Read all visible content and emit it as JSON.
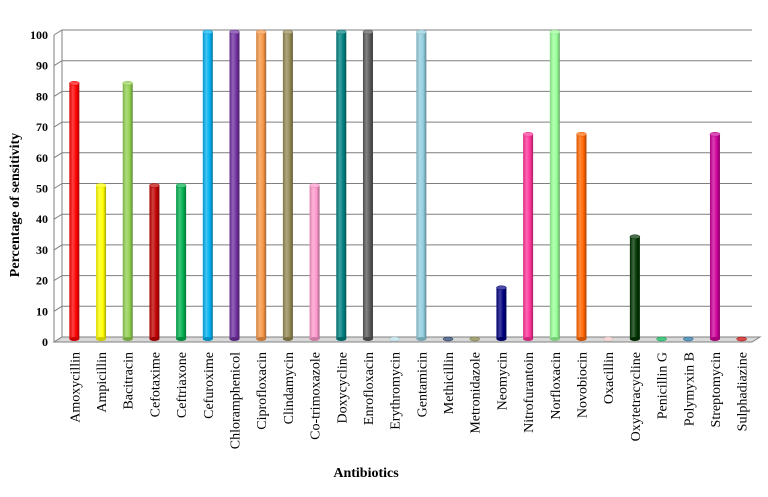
{
  "chart_data": {
    "type": "bar",
    "xlabel": "Antibiotics",
    "ylabel": "Percentage of sensitivity",
    "ylim": [
      0,
      100
    ],
    "yticks": [
      0,
      10,
      20,
      30,
      40,
      50,
      60,
      70,
      80,
      90,
      100
    ],
    "grid": true,
    "legend": "none",
    "categories": [
      "Amoxycillin",
      "Ampicillin",
      "Bacitracin",
      "Cefotaxime",
      "Ceftriaxone",
      "Cefuroxime",
      "Chloramphenicol",
      "Ciprofloxacin",
      "Clindamycin",
      "Co-trimoxazole",
      "Doxycycline",
      "Enrofloxacin",
      "Erythromycin",
      "Gentamicin",
      "Methicillin",
      "Metronidazole",
      "Neomycin",
      "Nitrofurantoin",
      "Norfloxacin",
      "Novobiocin",
      "Oxacillin",
      "Oxytetracycline",
      "Penicillin G",
      "Polymyxin B",
      "Streptomycin",
      "Sulphadiazine"
    ],
    "values": [
      83.3,
      50,
      83.3,
      50,
      50,
      100,
      100,
      100,
      100,
      50,
      100,
      100,
      0,
      100,
      0,
      0,
      16.7,
      66.7,
      100,
      66.7,
      0,
      33.3,
      0,
      0,
      66.7,
      0
    ],
    "colors": [
      "#ff0000",
      "#ffff00",
      "#92d050",
      "#c00000",
      "#00b050",
      "#00b0f0",
      "#7030a0",
      "#f79646",
      "#948a54",
      "#ff99cc",
      "#008080",
      "#595959",
      "#b7dee8",
      "#93cddd",
      "#1f3864",
      "#7f7f3f",
      "#000080",
      "#ff3399",
      "#99ff99",
      "#ff6600",
      "#f2c8c8",
      "#003300",
      "#00b050",
      "#1f6fa0",
      "#cc0099",
      "#c00000"
    ]
  }
}
